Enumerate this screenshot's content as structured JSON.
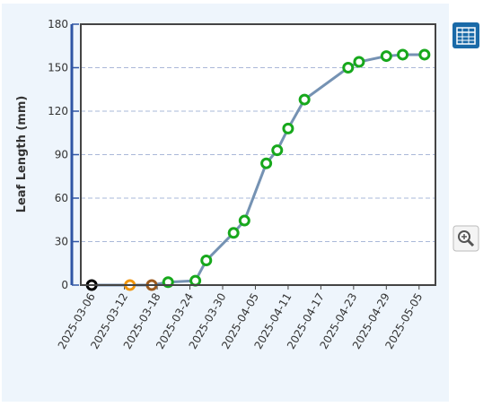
{
  "chart_data": {
    "type": "line",
    "y_label": "Leaf Length (mm)",
    "x": [
      "2025-03-06",
      "2025-03-13",
      "2025-03-17",
      "2025-03-20",
      "2025-03-25",
      "2025-03-27",
      "2025-04-01",
      "2025-04-03",
      "2025-04-07",
      "2025-04-09",
      "2025-04-11",
      "2025-04-14",
      "2025-04-22",
      "2025-04-24",
      "2025-04-29",
      "2025-05-02",
      "2025-05-06"
    ],
    "series": [
      {
        "color": "#7592b3",
        "marker_colors": [
          "#000000",
          "#f0960f",
          "#9c5a1e",
          "#17a81c",
          "#17a81c",
          "#17a81c",
          "#17a81c",
          "#17a81c",
          "#17a81c",
          "#17a81c",
          "#17a81c",
          "#17a81c",
          "#17a81c",
          "#17a81c",
          "#17a81c",
          "#17a81c",
          "#17a81c"
        ],
        "values": [
          0,
          0,
          0,
          2,
          3,
          17,
          36,
          44.5,
          84,
          93,
          108,
          128,
          150,
          154,
          158,
          159,
          159
        ]
      }
    ],
    "xlim": [
      "2025-03-04",
      "2025-05-08"
    ],
    "xticks": [
      "2025-03-06",
      "2025-03-12",
      "2025-03-18",
      "2025-03-24",
      "2025-03-30",
      "2025-04-05",
      "2025-04-11",
      "2025-04-17",
      "2025-04-23",
      "2025-04-29",
      "2025-05-05"
    ],
    "ylim": [
      0,
      180
    ],
    "yticks": [
      0,
      30,
      60,
      90,
      120,
      150,
      180
    ],
    "grid": true
  }
}
